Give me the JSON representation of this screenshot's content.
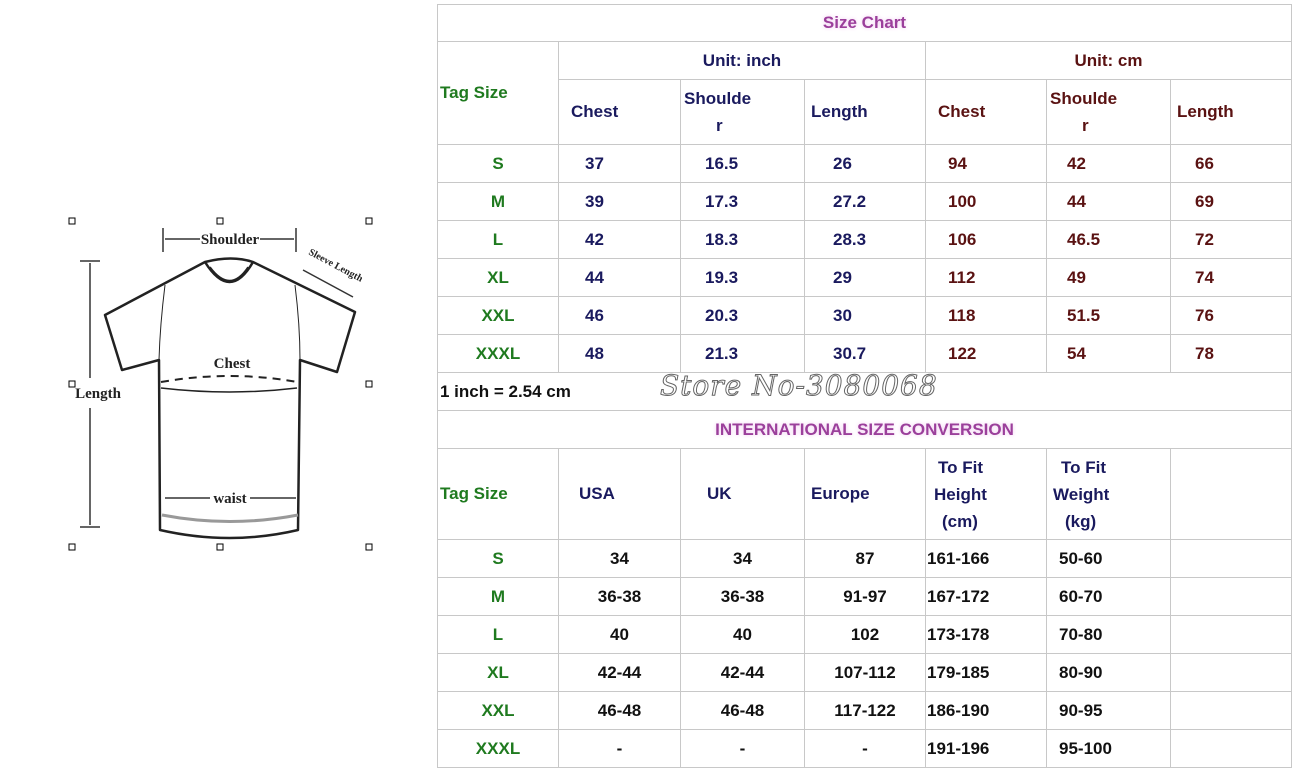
{
  "diagram": {
    "labels": {
      "shoulder": "Shoulder",
      "sleeve": "Sleeve Length",
      "chest": "Chest",
      "length": "Length",
      "waist": "waist"
    }
  },
  "size_chart": {
    "title": "Size Chart",
    "tag_size": "Tag Size",
    "unit_inch": "Unit: inch",
    "unit_cm": "Unit: cm",
    "headers": [
      "Chest",
      "Shoulde",
      "r",
      "Length"
    ],
    "rows": [
      {
        "tag": "S",
        "in": [
          "37",
          "16.5",
          "26"
        ],
        "cm": [
          "94",
          "42",
          "66"
        ]
      },
      {
        "tag": "M",
        "in": [
          "39",
          "17.3",
          "27.2"
        ],
        "cm": [
          "100",
          "44",
          "69"
        ]
      },
      {
        "tag": "L",
        "in": [
          "42",
          "18.3",
          "28.3"
        ],
        "cm": [
          "106",
          "46.5",
          "72"
        ]
      },
      {
        "tag": "XL",
        "in": [
          "44",
          "19.3",
          "29"
        ],
        "cm": [
          "112",
          "49",
          "74"
        ]
      },
      {
        "tag": "XXL",
        "in": [
          "46",
          "20.3",
          "30"
        ],
        "cm": [
          "118",
          "51.5",
          "76"
        ]
      },
      {
        "tag": "XXXL",
        "in": [
          "48",
          "21.3",
          "30.7"
        ],
        "cm": [
          "122",
          "54",
          "78"
        ]
      }
    ],
    "note": "1 inch = 2.54 cm"
  },
  "watermark": "Store No-3080068",
  "conversion": {
    "title": "INTERNATIONAL SIZE CONVERSION",
    "headers": {
      "tag": "Tag Size",
      "usa": "USA",
      "uk": "UK",
      "europe": "Europe",
      "height": [
        "To Fit",
        "Height",
        "(cm)"
      ],
      "weight": [
        "To Fit",
        "Weight",
        "(kg)"
      ]
    },
    "rows": [
      {
        "tag": "S",
        "v": [
          "34",
          "34",
          "87",
          "161-166",
          "50-60"
        ]
      },
      {
        "tag": "M",
        "v": [
          "36-38",
          "36-38",
          "91-97",
          "167-172",
          "60-70"
        ]
      },
      {
        "tag": "L",
        "v": [
          "40",
          "40",
          "102",
          "173-178",
          "70-80"
        ]
      },
      {
        "tag": "XL",
        "v": [
          "42-44",
          "42-44",
          "107-112",
          "179-185",
          "80-90"
        ]
      },
      {
        "tag": "XXL",
        "v": [
          "46-48",
          "46-48",
          "117-122",
          "186-190",
          "90-95"
        ]
      },
      {
        "tag": "XXXL",
        "v": [
          "-",
          "-",
          "-",
          "191-196",
          "95-100"
        ]
      }
    ]
  },
  "colors": {
    "tag": "#1f7a1f",
    "inch": "#1a1a5e",
    "cm": "#5a1212",
    "title": "#9b3f9b"
  }
}
